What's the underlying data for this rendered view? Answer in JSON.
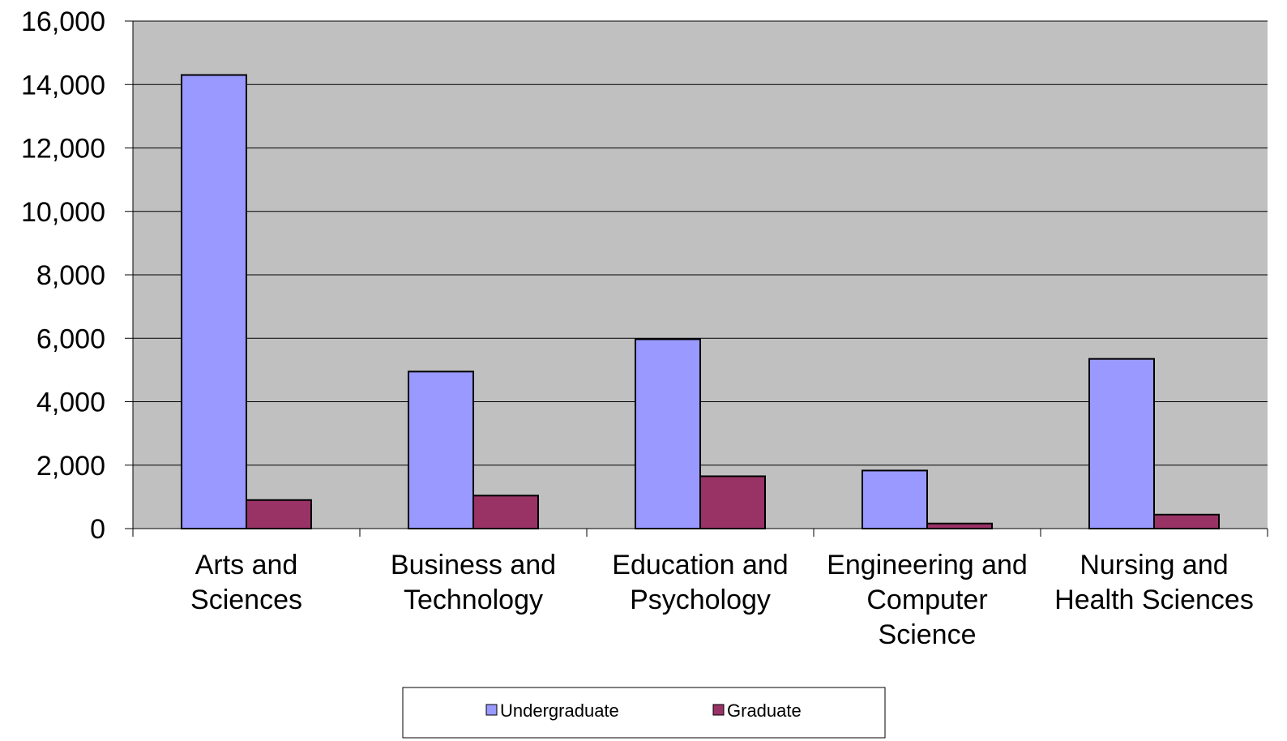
{
  "chart_data": {
    "type": "bar",
    "categories": [
      [
        "Arts and",
        "Sciences"
      ],
      [
        "Business and",
        "Technology"
      ],
      [
        "Education and",
        "Psychology"
      ],
      [
        "Engineering and",
        "Computer",
        "Science"
      ],
      [
        "Nursing and",
        "Health Sciences"
      ]
    ],
    "series": [
      {
        "name": "Undergraduate",
        "color": "#9999ff",
        "values": [
          14300,
          4950,
          5970,
          1830,
          5350
        ]
      },
      {
        "name": "Graduate",
        "color": "#993366",
        "values": [
          900,
          1040,
          1650,
          160,
          440
        ]
      }
    ],
    "y_ticks": [
      "0",
      "2,000",
      "4,000",
      "6,000",
      "8,000",
      "10,000",
      "12,000",
      "14,000",
      "16,000"
    ],
    "ylim": [
      0,
      16000
    ],
    "grid": true,
    "plot_background": "#c0c0c0",
    "legend_position": "bottom-center"
  }
}
